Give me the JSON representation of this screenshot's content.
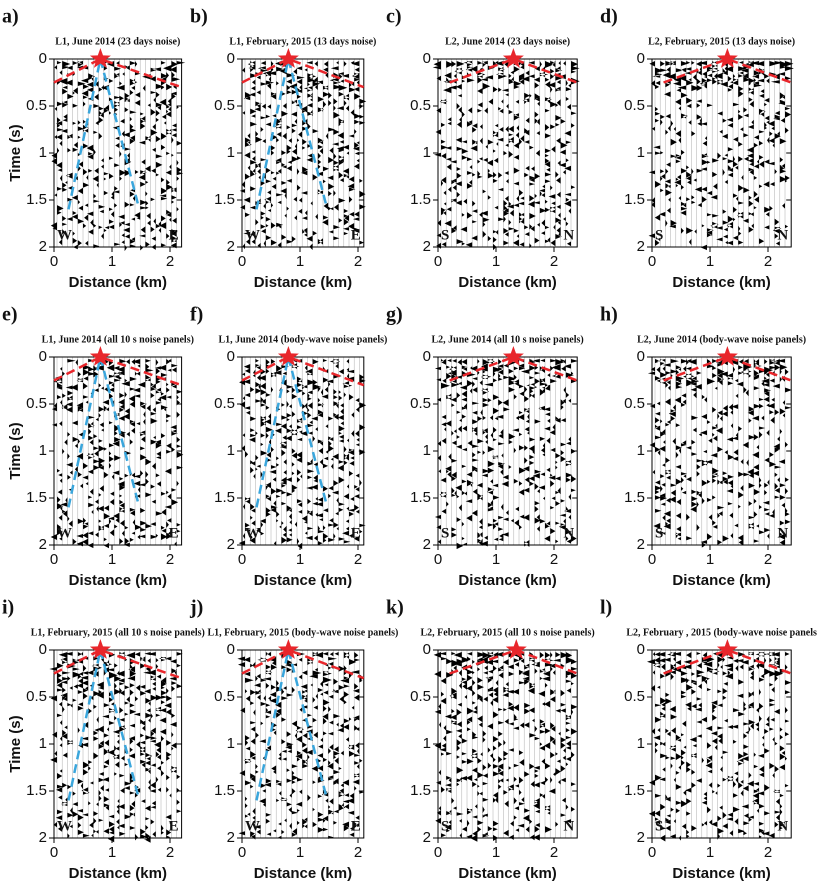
{
  "chart_data": [
    {
      "type": "wiggle",
      "label": "a)",
      "title": "L1, June 2014 (23 days noise)",
      "xlabel": "Distance (km)",
      "ylabel": "Time (s)",
      "xlim": [
        0,
        2.2
      ],
      "xticks": [
        0,
        1,
        2
      ],
      "ylim": [
        0,
        2
      ],
      "yticks": [
        0,
        0.5,
        1,
        1.5,
        2
      ],
      "side_labels": [
        "W",
        "E"
      ],
      "source": [
        0.8,
        0
      ],
      "lines": [
        {
          "color": "#e8262b",
          "x": [
            0,
            0.8,
            2.2
          ],
          "y": [
            0.25,
            0,
            0.3
          ]
        },
        {
          "color": "#3aa6dc",
          "x": [
            0.25,
            0.8,
            1.45
          ],
          "y": [
            1.6,
            0,
            1.55
          ]
        }
      ]
    },
    {
      "type": "wiggle",
      "label": "b)",
      "title": "L1, February, 2015 (13 days noise)",
      "xlabel": "Distance (km)",
      "xlim": [
        0,
        2.1
      ],
      "xticks": [
        0,
        1,
        2
      ],
      "ylim": [
        0,
        2
      ],
      "yticks": [
        0,
        0.5,
        1,
        1.5,
        2
      ],
      "side_labels": [
        "W",
        "E"
      ],
      "source": [
        0.8,
        0
      ],
      "lines": [
        {
          "color": "#e8262b",
          "x": [
            0,
            0.8,
            2.1
          ],
          "y": [
            0.25,
            0,
            0.3
          ]
        },
        {
          "color": "#3aa6dc",
          "x": [
            0.25,
            0.8,
            1.45
          ],
          "y": [
            1.6,
            0,
            1.55
          ]
        }
      ]
    },
    {
      "type": "wiggle",
      "label": "c)",
      "title": "L2, June 2014 (23 days noise)",
      "xlabel": "Distance (km)",
      "xlim": [
        0,
        2.4
      ],
      "xticks": [
        0,
        1,
        2
      ],
      "ylim": [
        0,
        2
      ],
      "yticks": [
        0,
        0.5,
        1,
        1.5,
        2
      ],
      "side_labels": [
        "S",
        "N"
      ],
      "source": [
        1.3,
        0
      ],
      "lines": [
        {
          "color": "#e8262b",
          "x": [
            0.2,
            1.3,
            2.4
          ],
          "y": [
            0.25,
            0,
            0.25
          ]
        }
      ]
    },
    {
      "type": "wiggle",
      "label": "d)",
      "title": "L2, February, 2015 (13 days noise)",
      "xlabel": "Distance (km)",
      "xlim": [
        0,
        2.4
      ],
      "xticks": [
        0,
        1,
        2
      ],
      "ylim": [
        0,
        2
      ],
      "yticks": [
        0,
        0.5,
        1,
        1.5,
        2
      ],
      "side_labels": [
        "S",
        "N"
      ],
      "source": [
        1.3,
        0
      ],
      "lines": [
        {
          "color": "#e8262b",
          "x": [
            0.2,
            1.3,
            2.4
          ],
          "y": [
            0.25,
            0,
            0.25
          ]
        }
      ]
    },
    {
      "type": "wiggle",
      "label": "e)",
      "title": "L1, June 2014 (all 10 s noise panels)",
      "xlabel": "Distance (km)",
      "ylabel": "Time (s)",
      "xlim": [
        0,
        2.2
      ],
      "xticks": [
        0,
        1,
        2
      ],
      "ylim": [
        0,
        2
      ],
      "yticks": [
        0,
        0.5,
        1,
        1.5,
        2
      ],
      "side_labels": [
        "W",
        "E"
      ],
      "source": [
        0.8,
        0
      ],
      "lines": [
        {
          "color": "#e8262b",
          "x": [
            0,
            0.8,
            2.2
          ],
          "y": [
            0.25,
            0,
            0.3
          ]
        },
        {
          "color": "#3aa6dc",
          "x": [
            0.25,
            0.8,
            1.45
          ],
          "y": [
            1.6,
            0,
            1.55
          ]
        }
      ]
    },
    {
      "type": "wiggle",
      "label": "f)",
      "title": "L1, June 2014 (body-wave noise panels)",
      "xlabel": "Distance (km)",
      "xlim": [
        0,
        2.1
      ],
      "xticks": [
        0,
        1,
        2
      ],
      "ylim": [
        0,
        2
      ],
      "yticks": [
        0,
        0.5,
        1,
        1.5,
        2
      ],
      "side_labels": [
        "W",
        "E"
      ],
      "source": [
        0.8,
        0
      ],
      "lines": [
        {
          "color": "#e8262b",
          "x": [
            0,
            0.8,
            2.1
          ],
          "y": [
            0.25,
            0,
            0.3
          ]
        },
        {
          "color": "#3aa6dc",
          "x": [
            0.25,
            0.8,
            1.45
          ],
          "y": [
            1.6,
            0,
            1.55
          ]
        }
      ]
    },
    {
      "type": "wiggle",
      "label": "g)",
      "title": "L2, June 2014 (all 10 s noise panels)",
      "xlabel": "Distance (km)",
      "xlim": [
        0,
        2.4
      ],
      "xticks": [
        0,
        1,
        2
      ],
      "ylim": [
        0,
        2
      ],
      "yticks": [
        0,
        0.5,
        1,
        1.5,
        2
      ],
      "side_labels": [
        "S",
        "N"
      ],
      "source": [
        1.3,
        0
      ],
      "lines": [
        {
          "color": "#e8262b",
          "x": [
            0.2,
            1.3,
            2.4
          ],
          "y": [
            0.25,
            0,
            0.25
          ]
        }
      ]
    },
    {
      "type": "wiggle",
      "label": "h)",
      "title": "L2, June 2014 (body-wave noise panels)",
      "xlabel": "Distance (km)",
      "xlim": [
        0,
        2.4
      ],
      "xticks": [
        0,
        1,
        2
      ],
      "ylim": [
        0,
        2
      ],
      "yticks": [
        0,
        0.5,
        1,
        1.5,
        2
      ],
      "side_labels": [
        "S",
        "N"
      ],
      "source": [
        1.3,
        0
      ],
      "lines": [
        {
          "color": "#e8262b",
          "x": [
            0.2,
            1.3,
            2.4
          ],
          "y": [
            0.25,
            0,
            0.25
          ]
        }
      ]
    },
    {
      "type": "wiggle",
      "label": "i)",
      "title": "L1, February, 2015 (all 10 s noise panels)",
      "xlabel": "Distance (km)",
      "ylabel": "Time (s)",
      "xlim": [
        0,
        2.2
      ],
      "xticks": [
        0,
        1,
        2
      ],
      "ylim": [
        0,
        2
      ],
      "yticks": [
        0,
        0.5,
        1,
        1.5,
        2
      ],
      "side_labels": [
        "W",
        "E"
      ],
      "source": [
        0.8,
        0
      ],
      "lines": [
        {
          "color": "#e8262b",
          "x": [
            0,
            0.8,
            2.2
          ],
          "y": [
            0.25,
            0,
            0.3
          ]
        },
        {
          "color": "#3aa6dc",
          "x": [
            0.25,
            0.8,
            1.45
          ],
          "y": [
            1.6,
            0,
            1.55
          ]
        }
      ]
    },
    {
      "type": "wiggle",
      "label": "j)",
      "title": "L1, February, 2015 (body-wave noise panels)",
      "xlabel": "Distance (km)",
      "xlim": [
        0,
        2.1
      ],
      "xticks": [
        0,
        1,
        2
      ],
      "ylim": [
        0,
        2
      ],
      "yticks": [
        0,
        0.5,
        1,
        1.5,
        2
      ],
      "side_labels": [
        "W",
        "E"
      ],
      "source": [
        0.8,
        0
      ],
      "lines": [
        {
          "color": "#e8262b",
          "x": [
            0,
            0.8,
            2.1
          ],
          "y": [
            0.25,
            0,
            0.3
          ]
        },
        {
          "color": "#3aa6dc",
          "x": [
            0.25,
            0.8,
            1.45
          ],
          "y": [
            1.6,
            0,
            1.55
          ]
        }
      ]
    },
    {
      "type": "wiggle",
      "label": "k)",
      "title": "L2, February, 2015 (all 10 s noise panels)",
      "xlabel": "Distance (km)",
      "xlim": [
        0,
        2.4
      ],
      "xticks": [
        0,
        1,
        2
      ],
      "ylim": [
        0,
        2
      ],
      "yticks": [
        0,
        0.5,
        1,
        1.5,
        2
      ],
      "side_labels": [
        "S",
        "N"
      ],
      "source": [
        1.35,
        0
      ],
      "lines": [
        {
          "color": "#e8262b",
          "x": [
            0.2,
            1.35,
            2.4
          ],
          "y": [
            0.25,
            0,
            0.25
          ]
        }
      ]
    },
    {
      "type": "wiggle",
      "label": "l)",
      "title": "L2, February , 2015 (body-wave noise panels",
      "xlabel": "Distance (km)",
      "xlim": [
        0,
        2.4
      ],
      "xticks": [
        0,
        1,
        2
      ],
      "ylim": [
        0,
        2
      ],
      "yticks": [
        0,
        0.5,
        1,
        1.5,
        2
      ],
      "side_labels": [
        "S",
        "N"
      ],
      "source": [
        1.3,
        0
      ],
      "lines": [
        {
          "color": "#e8262b",
          "x": [
            0.2,
            1.3,
            2.4
          ],
          "y": [
            0.25,
            0,
            0.25
          ]
        }
      ]
    }
  ]
}
